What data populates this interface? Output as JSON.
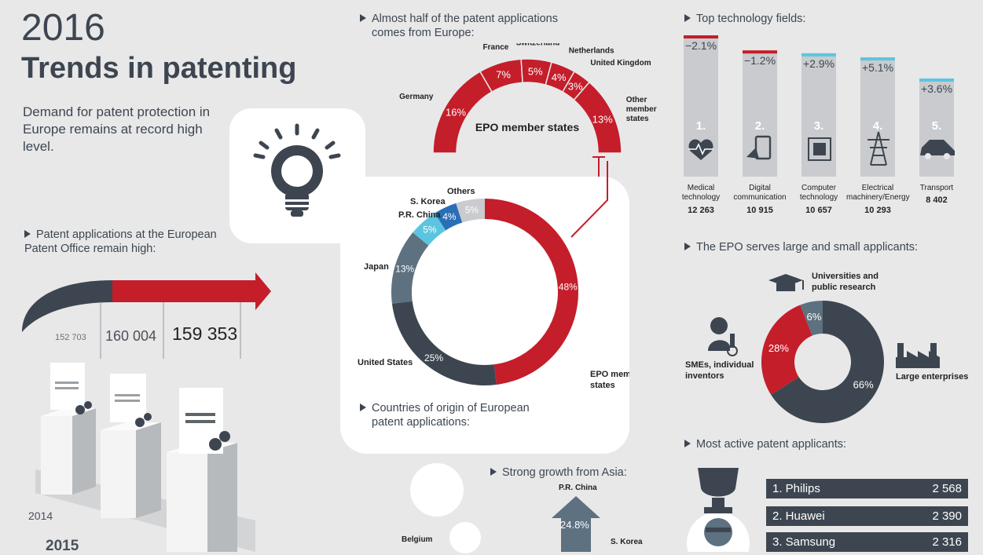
{
  "header": {
    "year": "2016",
    "title": "Trends in patenting",
    "subtitle": "Demand for patent protection in Europe remains at record high level."
  },
  "applications": {
    "heading": "Patent applications at the European Patent Office remain high:",
    "values": [
      "152 703",
      "160 004",
      "159 353"
    ],
    "years": [
      "2014",
      "2015"
    ]
  },
  "europe_share": {
    "heading": "Almost half of the patent applications comes from Europe:",
    "center_label": "EPO member states"
  },
  "origin": {
    "heading": "Countries of origin of European patent applications:"
  },
  "asia": {
    "heading": "Strong growth from Asia:",
    "labels": [
      "P.R. China",
      "Belgium",
      "S. Korea"
    ],
    "china_value": "24.8%"
  },
  "tech": {
    "heading": "Top technology fields:"
  },
  "applicants_size": {
    "heading": "The EPO serves large and small applicants:"
  },
  "active": {
    "heading": "Most active patent applicants:",
    "rows": [
      {
        "name": "1. Philips",
        "value": "2 568"
      },
      {
        "name": "2. Huawei",
        "value": "2 390"
      },
      {
        "name": "3. Samsung",
        "value": "2 316"
      }
    ]
  },
  "colors": {
    "red": "#c41e2a",
    "dark": "#3d4650",
    "slate": "#5d7180",
    "cyan": "#5bc5e0",
    "blue": "#2a6fb5",
    "lightgray": "#c9cbce"
  },
  "chart_data": [
    {
      "type": "pie",
      "id": "europe",
      "title": "EPO member states",
      "categories": [
        "Germany",
        "France",
        "Switzerland",
        "Netherlands",
        "United Kingdom",
        "Other member states"
      ],
      "values": [
        16,
        7,
        5,
        4,
        3,
        13
      ],
      "labels": [
        "16%",
        "7%",
        "5%",
        "4%",
        "3%",
        "13%"
      ]
    },
    {
      "type": "pie",
      "id": "origin",
      "categories": [
        "EPO member states",
        "United States",
        "Japan",
        "P.R. China",
        "S. Korea",
        "Others"
      ],
      "values": [
        48,
        25,
        13,
        5,
        4,
        5
      ],
      "labels": [
        "48%",
        "25%",
        "13%",
        "5%",
        "4%",
        "5%"
      ]
    },
    {
      "type": "bar",
      "id": "tech",
      "categories": [
        "Medical technology",
        "Digital communication",
        "Computer technology",
        "Electrical machinery/Energy",
        "Transport"
      ],
      "values": [
        12263,
        10915,
        10657,
        10293,
        8402
      ],
      "value_labels": [
        "12 263",
        "10 915",
        "10 657",
        "10 293",
        "8 402"
      ],
      "changes": [
        "−2.1%",
        "−1.2%",
        "+2.9%",
        "+5.1%",
        "+3.6%"
      ],
      "ranks": [
        "1.",
        "2.",
        "3.",
        "4.",
        "5."
      ]
    },
    {
      "type": "pie",
      "id": "size",
      "categories": [
        "Large enterprises",
        "SMEs, individual inventors",
        "Universities and public research"
      ],
      "values": [
        66,
        28,
        6
      ],
      "labels": [
        "66%",
        "28%",
        "6%"
      ]
    }
  ]
}
